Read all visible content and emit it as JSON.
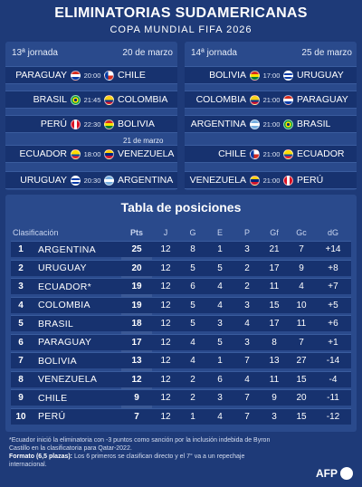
{
  "header": {
    "title": "ELIMINATORIAS SUDAMERICANAS",
    "subtitle": "COPA MUNDIAL FIFA 2026"
  },
  "jornadas": [
    {
      "label": "13ª jornada",
      "date": "20 de marzo",
      "extra_date": "21 de marzo",
      "matches": [
        {
          "home": "PARAGUAY",
          "time": "20:00",
          "away": "CHILE",
          "home_flag": "paraguay-flag",
          "away_flag": "chile-flag"
        },
        {
          "home": "BRASIL",
          "time": "21:45",
          "away": "COLOMBIA",
          "home_flag": "brazil-flag",
          "away_flag": "colombia-flag"
        },
        {
          "home": "PERÚ",
          "time": "22:30",
          "away": "BOLIVIA",
          "home_flag": "peru-flag",
          "away_flag": "bolivia-flag"
        },
        {
          "home": "ECUADOR",
          "time": "18:00",
          "away": "VENEZUELA",
          "home_flag": "ecuador-flag",
          "away_flag": "venezuela-flag"
        },
        {
          "home": "URUGUAY",
          "time": "20:30",
          "away": "ARGENTINA",
          "home_flag": "uruguay-flag",
          "away_flag": "argentina-flag"
        }
      ]
    },
    {
      "label": "14ª jornada",
      "date": "25 de marzo",
      "matches": [
        {
          "home": "BOLIVIA",
          "time": "17:00",
          "away": "URUGUAY",
          "home_flag": "bolivia-flag",
          "away_flag": "uruguay-flag"
        },
        {
          "home": "COLOMBIA",
          "time": "21:00",
          "away": "PARAGUAY",
          "home_flag": "colombia-flag",
          "away_flag": "paraguay-flag"
        },
        {
          "home": "ARGENTINA",
          "time": "21:00",
          "away": "BRASIL",
          "home_flag": "argentina-flag",
          "away_flag": "brazil-flag"
        },
        {
          "home": "CHILE",
          "time": "21:00",
          "away": "ECUADOR",
          "home_flag": "chile-flag",
          "away_flag": "ecuador-flag"
        },
        {
          "home": "VENEZUELA",
          "time": "21:00",
          "away": "PERÚ",
          "home_flag": "venezuela-flag",
          "away_flag": "peru-flag"
        }
      ]
    }
  ],
  "standings": {
    "title": "Tabla de posiciones",
    "headers": {
      "clasificacion": "Clasificación",
      "pts": "Pts",
      "j": "J",
      "g": "G",
      "e": "E",
      "p": "P",
      "gf": "Gf",
      "gc": "Gc",
      "dg": "dG"
    },
    "rows": [
      {
        "pos": "1",
        "team": "ARGENTINA",
        "pts": "25",
        "j": "12",
        "g": "8",
        "e": "1",
        "p": "3",
        "gf": "21",
        "gc": "7",
        "dg": "+14"
      },
      {
        "pos": "2",
        "team": "URUGUAY",
        "pts": "20",
        "j": "12",
        "g": "5",
        "e": "5",
        "p": "2",
        "gf": "17",
        "gc": "9",
        "dg": "+8"
      },
      {
        "pos": "3",
        "team": "ECUADOR*",
        "pts": "19",
        "j": "12",
        "g": "6",
        "e": "4",
        "p": "2",
        "gf": "11",
        "gc": "4",
        "dg": "+7"
      },
      {
        "pos": "4",
        "team": "COLOMBIA",
        "pts": "19",
        "j": "12",
        "g": "5",
        "e": "4",
        "p": "3",
        "gf": "15",
        "gc": "10",
        "dg": "+5"
      },
      {
        "pos": "5",
        "team": "BRASIL",
        "pts": "18",
        "j": "12",
        "g": "5",
        "e": "3",
        "p": "4",
        "gf": "17",
        "gc": "11",
        "dg": "+6"
      },
      {
        "pos": "6",
        "team": "PARAGUAY",
        "pts": "17",
        "j": "12",
        "g": "4",
        "e": "5",
        "p": "3",
        "gf": "8",
        "gc": "7",
        "dg": "+1"
      },
      {
        "pos": "7",
        "team": "BOLIVIA",
        "pts": "13",
        "j": "12",
        "g": "4",
        "e": "1",
        "p": "7",
        "gf": "13",
        "gc": "27",
        "dg": "-14"
      },
      {
        "pos": "8",
        "team": "VENEZUELA",
        "pts": "12",
        "j": "12",
        "g": "2",
        "e": "6",
        "p": "4",
        "gf": "11",
        "gc": "15",
        "dg": "-4"
      },
      {
        "pos": "9",
        "team": "CHILE",
        "pts": "9",
        "j": "12",
        "g": "2",
        "e": "3",
        "p": "7",
        "gf": "9",
        "gc": "20",
        "dg": "-11"
      },
      {
        "pos": "10",
        "team": "PERÚ",
        "pts": "7",
        "j": "12",
        "g": "1",
        "e": "4",
        "p": "7",
        "gf": "3",
        "gc": "15",
        "dg": "-12"
      }
    ]
  },
  "footnote": {
    "line1": "*Ecuador inició la eliminatoria con -3 puntos como sanción por la inclusión indebida de Byron Castillo en la clasificatoria para Qatar-2022.",
    "format_label": "Formato (6,5 plazas):",
    "format_text": " Los 6 primeros se clasifican directo y el 7° va a un repechaje internacional."
  },
  "logo": {
    "text": "AFP"
  },
  "colors": {
    "background": "#1e3a78",
    "panel": "#2a4a8c",
    "row": "#17326f"
  }
}
